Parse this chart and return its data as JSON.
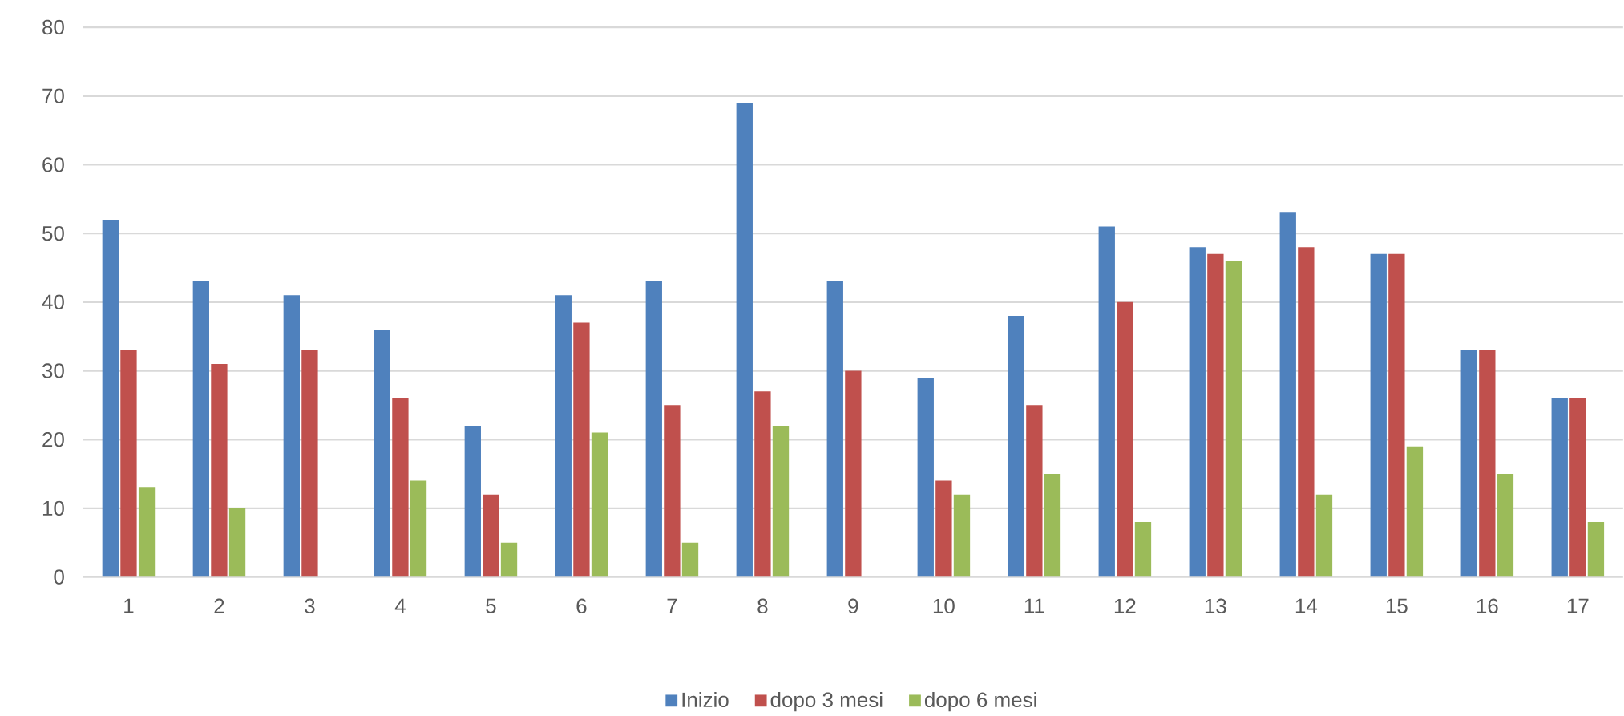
{
  "chart_data": {
    "type": "bar",
    "categories": [
      "1",
      "2",
      "3",
      "4",
      "5",
      "6",
      "7",
      "8",
      "9",
      "10",
      "11",
      "12",
      "13",
      "14",
      "15",
      "16",
      "17"
    ],
    "series": [
      {
        "name": "Inizio",
        "color": "#4f81bd",
        "values": [
          52,
          43,
          41,
          36,
          22,
          41,
          43,
          69,
          43,
          29,
          38,
          51,
          48,
          53,
          47,
          33,
          26
        ]
      },
      {
        "name": "dopo 3 mesi",
        "color": "#c0504d",
        "values": [
          33,
          31,
          33,
          26,
          12,
          37,
          25,
          27,
          30,
          14,
          25,
          40,
          47,
          48,
          47,
          33,
          26
        ]
      },
      {
        "name": "dopo 6 mesi",
        "color": "#9bbb59",
        "values": [
          13,
          10,
          null,
          14,
          5,
          21,
          5,
          22,
          null,
          12,
          15,
          8,
          46,
          12,
          19,
          15,
          8
        ]
      }
    ],
    "ylim": [
      0,
      80
    ],
    "yticks": [
      0,
      10,
      20,
      30,
      40,
      50,
      60,
      70,
      80
    ],
    "grid": "y",
    "legend": "bottom"
  }
}
